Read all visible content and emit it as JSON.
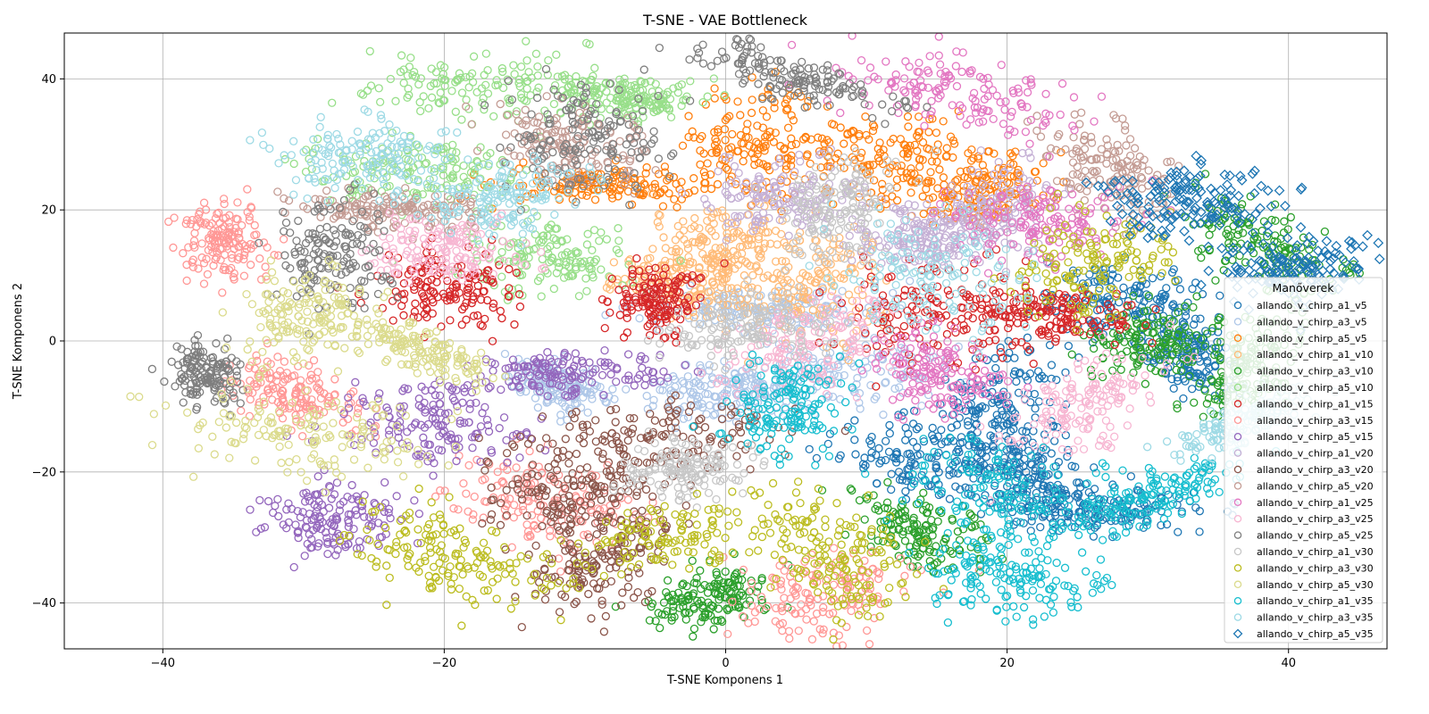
{
  "chart_data": {
    "type": "scatter",
    "title": "T-SNE - VAE Bottleneck",
    "xlabel": "T-SNE Komponens 1",
    "ylabel": "T-SNE Komponens 2",
    "xlim": [
      -47,
      47
    ],
    "ylim": [
      -47,
      47
    ],
    "xticks": [
      -40,
      -20,
      0,
      20,
      40
    ],
    "yticks": [
      -40,
      -20,
      0,
      20,
      40
    ],
    "grid": true,
    "legend": {
      "title": "Manőverek",
      "placement": "center-right"
    },
    "series": [
      {
        "name": "allando_v_chirp_a1_v5",
        "color": "#1f77b4",
        "marker": "circle",
        "blobs": [
          [
            22,
            -20
          ],
          [
            28,
            6
          ],
          [
            33,
            -2
          ],
          [
            14,
            -18
          ],
          [
            19,
            -10
          ],
          [
            26,
            -26
          ]
        ]
      },
      {
        "name": "allando_v_chirp_a3_v5",
        "color": "#aec7e8",
        "marker": "circle",
        "blobs": [
          [
            0,
            -8
          ],
          [
            -12,
            -7
          ],
          [
            8,
            -5
          ],
          [
            3,
            5
          ]
        ]
      },
      {
        "name": "allando_v_chirp_a5_v5",
        "color": "#ff7f0e",
        "marker": "circle",
        "blobs": [
          [
            2,
            30
          ],
          [
            12,
            28
          ],
          [
            18,
            23
          ],
          [
            -8,
            24
          ]
        ]
      },
      {
        "name": "allando_v_chirp_a1_v10",
        "color": "#ffbb78",
        "marker": "circle",
        "blobs": [
          [
            0,
            15
          ],
          [
            6,
            8
          ],
          [
            -3,
            9
          ]
        ]
      },
      {
        "name": "allando_v_chirp_a3_v10",
        "color": "#2ca02c",
        "marker": "circle",
        "blobs": [
          [
            38,
            15
          ],
          [
            30,
            0
          ],
          [
            14,
            -29
          ],
          [
            -1,
            -39
          ],
          [
            37,
            -4
          ]
        ]
      },
      {
        "name": "allando_v_chirp_a5_v10",
        "color": "#98df8a",
        "marker": "circle",
        "blobs": [
          [
            -7,
            37
          ],
          [
            -17,
            39
          ],
          [
            -13,
            13
          ],
          [
            -22,
            26
          ]
        ]
      },
      {
        "name": "allando_v_chirp_a1_v15",
        "color": "#d62728",
        "marker": "circle",
        "blobs": [
          [
            -20,
            8
          ],
          [
            -5,
            6
          ],
          [
            15,
            4
          ],
          [
            23,
            4
          ]
        ]
      },
      {
        "name": "allando_v_chirp_a3_v15",
        "color": "#ff9896",
        "marker": "circle",
        "blobs": [
          [
            -36,
            15
          ],
          [
            -31,
            -8
          ],
          [
            7,
            -39
          ],
          [
            -13,
            -25
          ]
        ]
      },
      {
        "name": "allando_v_chirp_a5_v15",
        "color": "#9467bd",
        "marker": "circle",
        "blobs": [
          [
            -28,
            -27
          ],
          [
            -21,
            -13
          ],
          [
            -12,
            -5
          ]
        ]
      },
      {
        "name": "allando_v_chirp_a1_v20",
        "color": "#c5b0d5",
        "marker": "circle",
        "blobs": [
          [
            4,
            22
          ],
          [
            14,
            16
          ],
          [
            19,
            20
          ]
        ]
      },
      {
        "name": "allando_v_chirp_a3_v20",
        "color": "#8c564b",
        "marker": "circle",
        "blobs": [
          [
            -11,
            -23
          ],
          [
            -9,
            -34
          ],
          [
            -5,
            -15
          ]
        ]
      },
      {
        "name": "allando_v_chirp_a5_v20",
        "color": "#c49c94",
        "marker": "circle",
        "blobs": [
          [
            -24,
            20
          ],
          [
            27,
            26
          ],
          [
            -11,
            30
          ]
        ]
      },
      {
        "name": "allando_v_chirp_a1_v25",
        "color": "#e377c2",
        "marker": "circle",
        "blobs": [
          [
            16,
            38
          ],
          [
            15,
            -5
          ],
          [
            22,
            18
          ]
        ]
      },
      {
        "name": "allando_v_chirp_a3_v25",
        "color": "#f7b6d2",
        "marker": "circle",
        "blobs": [
          [
            -20,
            14
          ],
          [
            25,
            -10
          ],
          [
            6,
            0
          ]
        ]
      },
      {
        "name": "allando_v_chirp_a5_v25",
        "color": "#7f7f7f",
        "marker": "circle",
        "blobs": [
          [
            -37,
            -5
          ],
          [
            5,
            40
          ],
          [
            -28,
            13
          ],
          [
            -10,
            31
          ]
        ]
      },
      {
        "name": "allando_v_chirp_a1_v30",
        "color": "#c7c7c7",
        "marker": "circle",
        "blobs": [
          [
            -3,
            -20
          ],
          [
            1,
            2
          ],
          [
            8,
            20
          ]
        ]
      },
      {
        "name": "allando_v_chirp_a3_v30",
        "color": "#bcbd22",
        "marker": "circle",
        "blobs": [
          [
            -20,
            -33
          ],
          [
            8,
            -33
          ],
          [
            26,
            12
          ],
          [
            -4,
            -30
          ]
        ]
      },
      {
        "name": "allando_v_chirp_a5_v30",
        "color": "#dbdb8d",
        "marker": "circle",
        "blobs": [
          [
            -30,
            -14
          ],
          [
            -22,
            -1
          ],
          [
            -30,
            4
          ]
        ]
      },
      {
        "name": "allando_v_chirp_a1_v35",
        "color": "#17becf",
        "marker": "circle",
        "blobs": [
          [
            4,
            -10
          ],
          [
            20,
            -23
          ],
          [
            30,
            -24
          ],
          [
            20,
            -36
          ]
        ]
      },
      {
        "name": "allando_v_chirp_a3_v35",
        "color": "#9edae5",
        "marker": "circle",
        "blobs": [
          [
            -26,
            28
          ],
          [
            15,
            10
          ],
          [
            37,
            -12
          ],
          [
            -16,
            22
          ]
        ]
      },
      {
        "name": "allando_v_chirp_a5_v35",
        "color": "#1f77b4",
        "marker": "diamond",
        "blobs": [
          [
            40.5,
            11.5
          ],
          [
            32.5,
            21.5
          ]
        ]
      }
    ]
  }
}
